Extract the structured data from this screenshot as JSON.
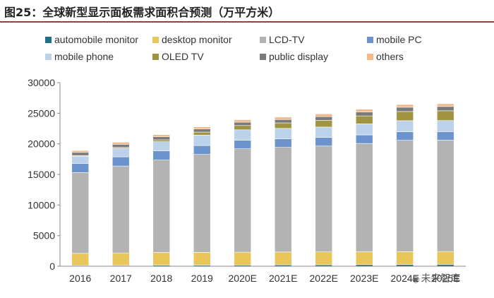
{
  "title": "图25：全球新型显示面板需求面积合预测（万平方米）",
  "watermark": "未来智库",
  "chart_data": {
    "type": "bar",
    "stacked": true,
    "title": "图25：全球新型显示面板需求面积合预测（万平方米）",
    "xlabel": "",
    "ylabel": "",
    "ylim": [
      0,
      30000
    ],
    "yticks": [
      0,
      5000,
      10000,
      15000,
      20000,
      25000,
      30000
    ],
    "categories": [
      "2016",
      "2017",
      "2018",
      "2019",
      "2020E",
      "2021E",
      "2022E",
      "2023E",
      "2024E",
      "2025E"
    ],
    "series": [
      {
        "name": "automobile monitor",
        "color": "#1f6f8b",
        "values": [
          100,
          120,
          150,
          170,
          190,
          220,
          240,
          260,
          280,
          300
        ]
      },
      {
        "name": "desktop monitor",
        "color": "#e8c65a",
        "values": [
          2000,
          2050,
          2100,
          2100,
          2100,
          2100,
          2100,
          2100,
          2100,
          2100
        ]
      },
      {
        "name": "LCD-TV",
        "color": "#b3b3b3",
        "values": [
          13200,
          14200,
          15100,
          16000,
          16900,
          17100,
          17300,
          17700,
          18200,
          18200
        ]
      },
      {
        "name": "mobile PC",
        "color": "#6d93cc",
        "values": [
          1500,
          1500,
          1500,
          1450,
          1400,
          1400,
          1400,
          1400,
          1400,
          1400
        ]
      },
      {
        "name": "mobile phone",
        "color": "#bcd1ea",
        "values": [
          1200,
          1400,
          1500,
          1700,
          1700,
          1700,
          1700,
          1800,
          1800,
          1800
        ]
      },
      {
        "name": "OLED TV",
        "color": "#a09441",
        "values": [
          100,
          150,
          300,
          500,
          700,
          900,
          1100,
          1300,
          1500,
          1600
        ]
      },
      {
        "name": "public display",
        "color": "#7a7a7a",
        "values": [
          500,
          500,
          500,
          500,
          550,
          550,
          600,
          650,
          700,
          700
        ]
      },
      {
        "name": "others",
        "color": "#f3b98a",
        "values": [
          300,
          350,
          350,
          350,
          400,
          400,
          450,
          450,
          450,
          450
        ]
      }
    ]
  }
}
